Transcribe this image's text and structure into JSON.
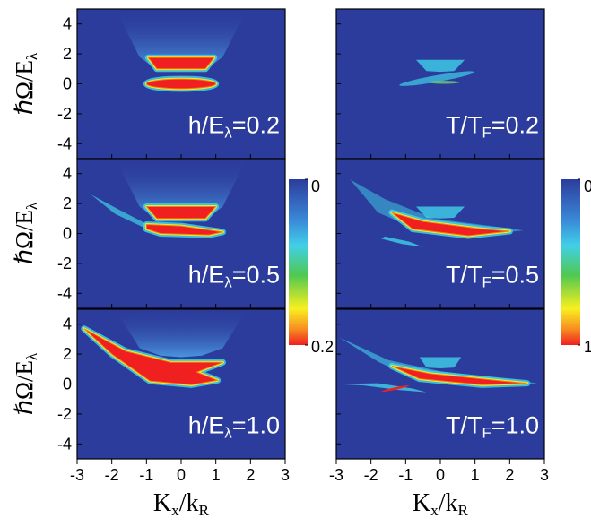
{
  "chart_data": {
    "type": "heatmap_grid",
    "xlim": [
      -3,
      3
    ],
    "ylim": [
      -5,
      5
    ],
    "xticks": [
      -3,
      -2,
      -1,
      0,
      1,
      2,
      3
    ],
    "yticks": [
      -4,
      -2,
      0,
      2,
      4
    ],
    "xlabel": [
      "K",
      "x",
      "/k",
      "R"
    ],
    "ylabel": [
      "ℏΩ/E",
      "λ"
    ],
    "panels": [
      {
        "annotation": [
          "h/E",
          "λ",
          "=0.2"
        ]
      },
      {
        "annotation": [
          "T/T",
          "F",
          "=0.2"
        ]
      },
      {
        "annotation": [
          "h/E",
          "λ",
          "=0.5"
        ]
      },
      {
        "annotation": [
          "T/T",
          "F",
          "=0.5"
        ]
      },
      {
        "annotation": [
          "h/E",
          "λ",
          "=1.0"
        ]
      },
      {
        "annotation": [
          "T/T",
          "F",
          "=1.0"
        ]
      }
    ],
    "colorbars": [
      {
        "clim": [
          0,
          0.2
        ],
        "ticks": [
          0,
          0.2
        ]
      },
      {
        "clim": [
          0,
          1
        ],
        "ticks": [
          0,
          1
        ]
      }
    ]
  }
}
